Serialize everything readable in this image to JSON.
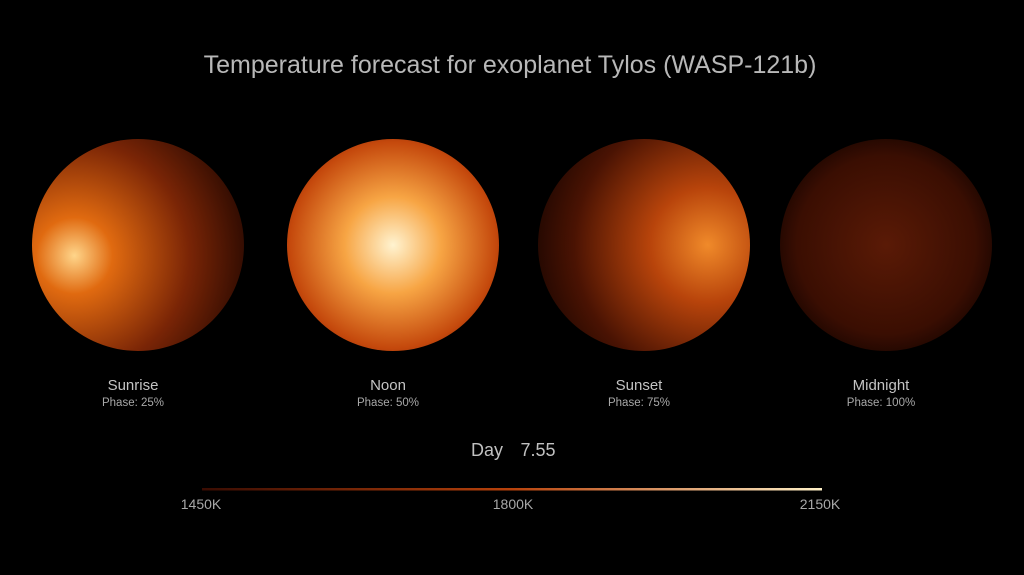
{
  "title": "Temperature forecast for exoplanet Tylos (WASP-121b)",
  "panels": [
    {
      "name": "Sunrise",
      "phase": "Phase: 25%"
    },
    {
      "name": "Noon",
      "phase": "Phase: 50%"
    },
    {
      "name": "Sunset",
      "phase": "Phase: 75%"
    },
    {
      "name": "Midnight",
      "phase": "Phase: 100%"
    }
  ],
  "day": {
    "label": "Day",
    "value": "7.55"
  },
  "colorbar": {
    "labels": [
      "1450K",
      "1800K",
      "2150K"
    ]
  }
}
